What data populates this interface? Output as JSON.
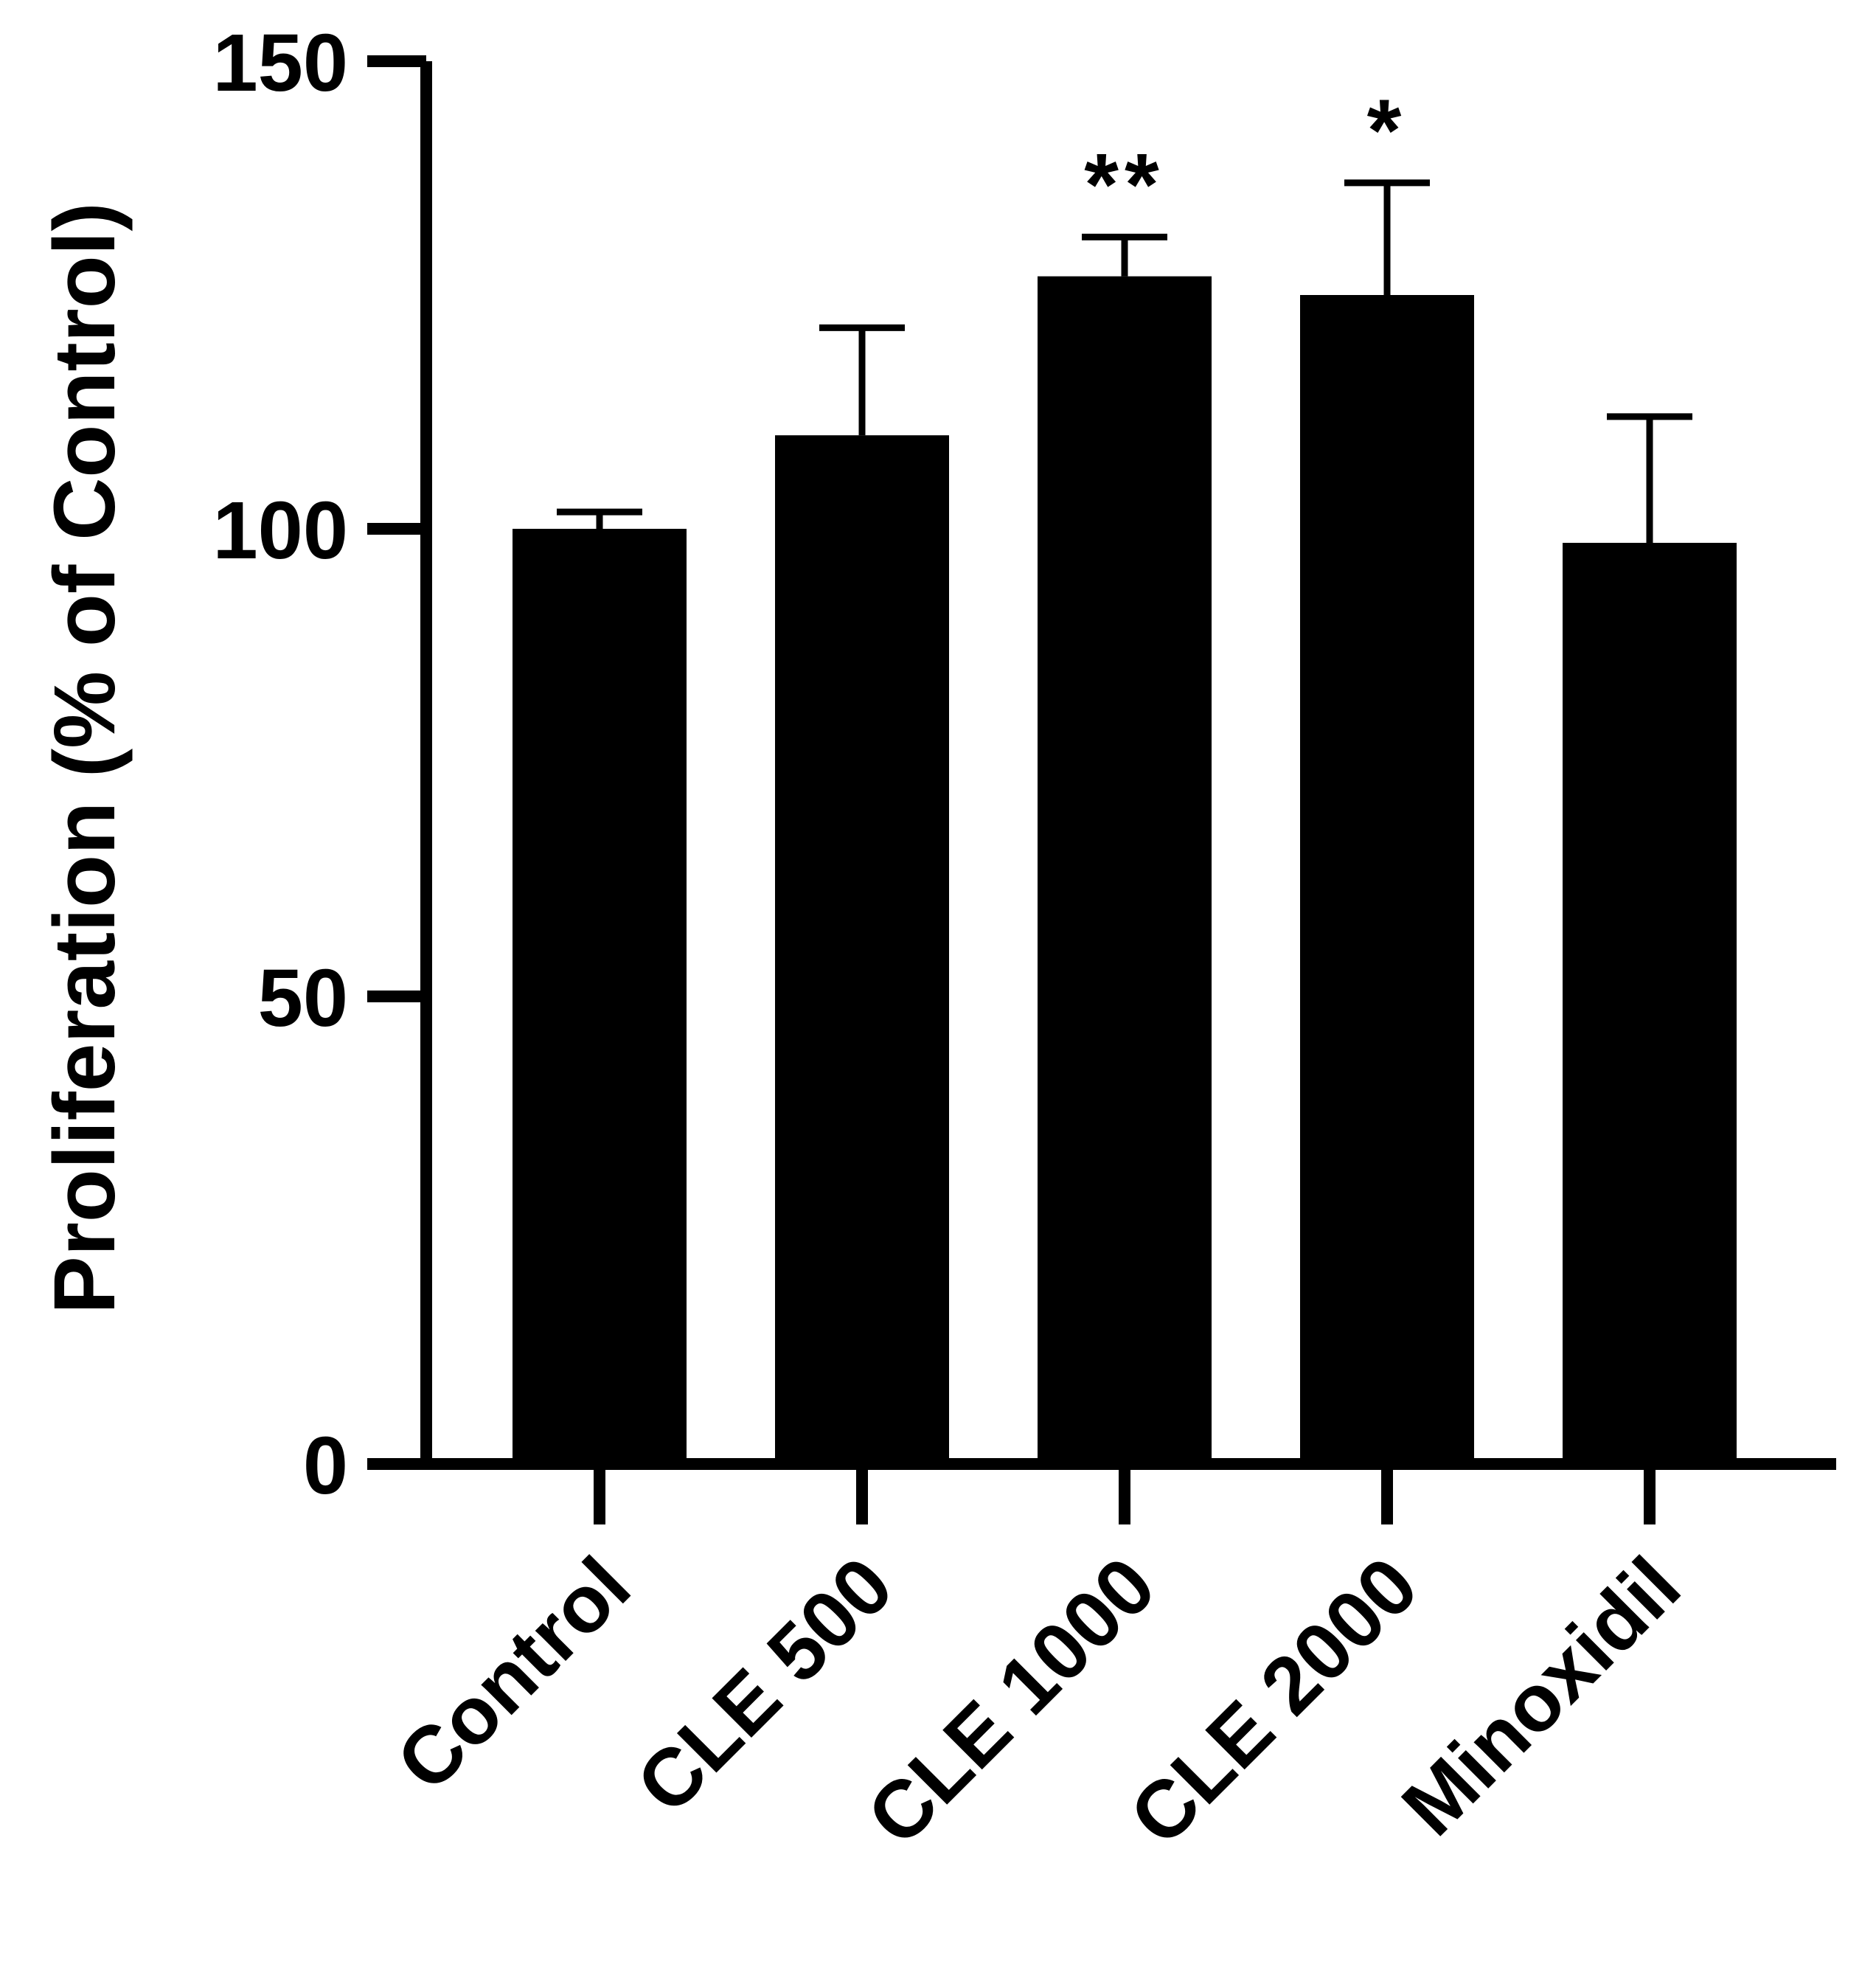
{
  "chart_data": {
    "type": "bar",
    "title": "",
    "xlabel": "",
    "ylabel": "Proliferation (% of Control)",
    "categories": [
      "Control",
      "CLE 500",
      "CLE 1000",
      "CLE 2000",
      "Minoxidil"
    ],
    "values": [
      100,
      110,
      127,
      125,
      98.5
    ],
    "error_upper": [
      1.8,
      11.5,
      4.2,
      12,
      13.5
    ],
    "significance": [
      "",
      "",
      "**",
      "*",
      ""
    ],
    "ylim": [
      0,
      150
    ],
    "yticks": [
      0,
      50,
      100,
      150
    ],
    "grid": false,
    "legend": "none",
    "colors": {
      "bar": "#000000",
      "axis": "#000000",
      "background": "#ffffff"
    }
  }
}
